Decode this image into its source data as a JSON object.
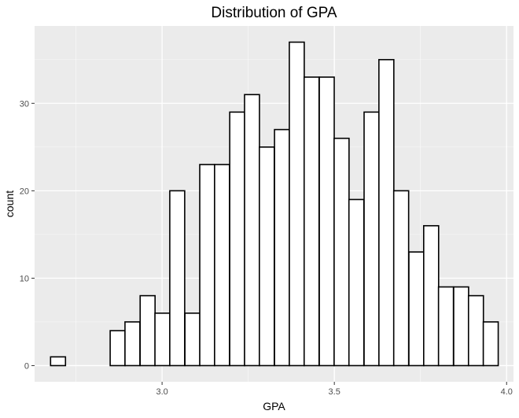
{
  "chart_data": {
    "type": "bar",
    "title": "Distribution of GPA",
    "xlabel": "GPA",
    "ylabel": "count",
    "xlim": [
      2.63,
      4.02
    ],
    "ylim": [
      -1.85,
      38.85
    ],
    "grid": true,
    "x_ticks": [
      {
        "value": 3.0,
        "label": "3.0"
      },
      {
        "value": 3.5,
        "label": "3.5"
      },
      {
        "value": 4.0,
        "label": "4.0"
      }
    ],
    "y_ticks": [
      {
        "value": 0,
        "label": "0"
      },
      {
        "value": 10,
        "label": "10"
      },
      {
        "value": 20,
        "label": "20"
      },
      {
        "value": 30,
        "label": "30"
      }
    ],
    "bin_width": 0.0433,
    "bin_centers": [
      2.698,
      2.741,
      2.784,
      2.828,
      2.871,
      2.914,
      2.958,
      3.001,
      3.044,
      3.088,
      3.131,
      3.174,
      3.218,
      3.261,
      3.304,
      3.348,
      3.391,
      3.434,
      3.478,
      3.521,
      3.564,
      3.608,
      3.651,
      3.694,
      3.738,
      3.781,
      3.824,
      3.868,
      3.911,
      3.954
    ],
    "values": [
      1,
      0,
      0,
      0,
      4,
      5,
      8,
      6,
      20,
      6,
      23,
      23,
      29,
      31,
      25,
      27,
      37,
      33,
      33,
      26,
      19,
      29,
      35,
      20,
      13,
      16,
      9,
      9,
      8,
      5
    ],
    "bar_fill": "#ffffff",
    "bar_outline": "#000000",
    "panel_color": "#ebebeb",
    "grid_color": "#ffffff"
  }
}
